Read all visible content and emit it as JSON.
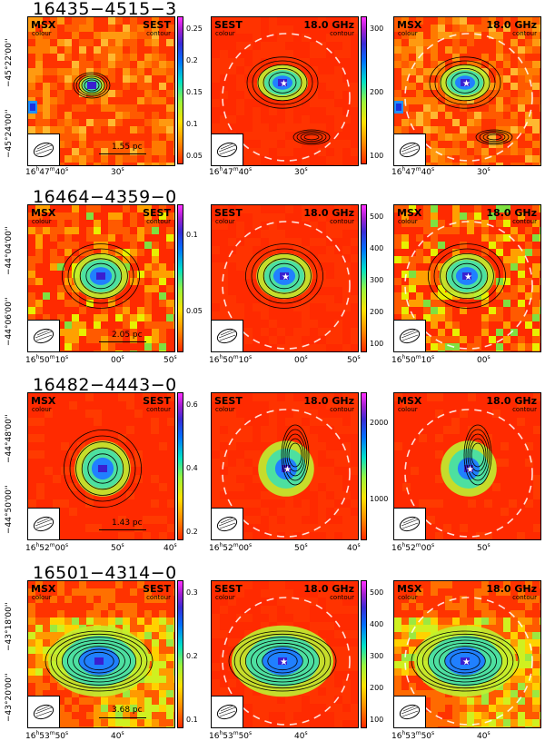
{
  "rows": [
    {
      "title": "16435−4515−3",
      "dec_top": "−45°22'00''",
      "dec_bot": "−45°24'00''",
      "ra_h": "16",
      "ra_m": "47",
      "ra_s": "40",
      "ra_s2": "30",
      "scale": "1.55 pc",
      "cb1": [
        "0.25",
        "0.2",
        "0.15",
        "0.1",
        "0.05"
      ],
      "cb2": [
        "300",
        "200",
        "100"
      ]
    },
    {
      "title": "16464−4359−0",
      "dec_top": "−44°04'00''",
      "dec_bot": "−44°06'00''",
      "ra_h": "16",
      "ra_m": "50",
      "ra_s": "10",
      "ra_s2": "00",
      "ra_s3": "50",
      "scale": "2.05 pc",
      "cb1": [
        "0.1",
        "0.05"
      ],
      "cb2": [
        "500",
        "400",
        "300",
        "200",
        "100"
      ]
    },
    {
      "title": "16482−4443−0",
      "dec_top": "−44°48'00''",
      "dec_bot": "−44°50'00''",
      "ra_h": "16",
      "ra_m": "52",
      "ra_s": "00",
      "ra_s2": "50",
      "ra_s3": "40",
      "scale": "1.43 pc",
      "cb1": [
        "0.6",
        "0.4",
        "0.2"
      ],
      "cb2": [
        "2000",
        "1000"
      ]
    },
    {
      "title": "16501−4314−0",
      "dec_top": "−43°18'00''",
      "dec_bot": "−43°20'00''",
      "ra_h": "16",
      "ra_m": "53",
      "ra_s": "50",
      "ra_s2": "40",
      "scale": "3.68 pc",
      "cb1": [
        "0.3",
        "0.2",
        "0.1"
      ],
      "cb2": [
        "500",
        "400",
        "300",
        "200",
        "100"
      ]
    }
  ],
  "labels": {
    "msx": "MSX",
    "sest": "SEST",
    "colour": "colour",
    "contour": "contour",
    "freq": "18.0 GHz"
  }
}
